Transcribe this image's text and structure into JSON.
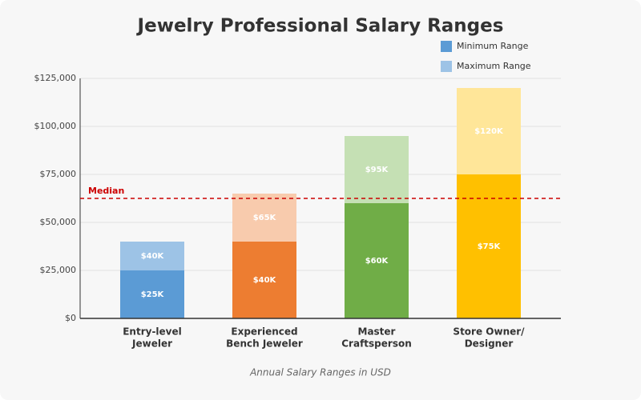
{
  "chart_data": {
    "type": "range_bar",
    "title": "Jewelry Professional Salary Ranges",
    "x_label": "Annual Salary Ranges in USD",
    "categories": [
      [
        "Entry-level",
        "Jeweler"
      ],
      [
        "Experienced",
        "Bench Jeweler"
      ],
      [
        "Master",
        "Craftsperson"
      ],
      [
        "Store Owner/",
        "Designer"
      ]
    ],
    "series": [
      {
        "name": "Minimum Range",
        "color": "#5b9bd5",
        "colors": [
          "#5b9bd5",
          "#ed7d31",
          "#70ad47",
          "#ffc000"
        ],
        "values": [
          25000,
          40000,
          60000,
          75000
        ],
        "value_labels": [
          "$25K",
          "$40K",
          "$60K",
          "$75K"
        ]
      },
      {
        "name": "Maximum Range",
        "color": "#9dc3e6",
        "colors": [
          "#9dc3e6",
          "#f8cbad",
          "#c5e0b4",
          "#ffe699"
        ],
        "values": [
          40000,
          65000,
          95000,
          120000
        ],
        "value_labels": [
          "$40K",
          "$65K",
          "$95K",
          "$120K"
        ]
      }
    ],
    "median": {
      "label": "Median",
      "value": 62500,
      "color": "#cc0000"
    },
    "ylim": [
      0,
      125000
    ],
    "yticks": [
      {
        "value": 0,
        "label": "$0"
      },
      {
        "value": 25000,
        "label": "$25,000"
      },
      {
        "value": 50000,
        "label": "$50,000"
      },
      {
        "value": 75000,
        "label": "$75,000"
      },
      {
        "value": 100000,
        "label": "$100,000"
      },
      {
        "value": 125000,
        "label": "$125,000"
      }
    ],
    "grid": true,
    "legend": "top-right"
  }
}
